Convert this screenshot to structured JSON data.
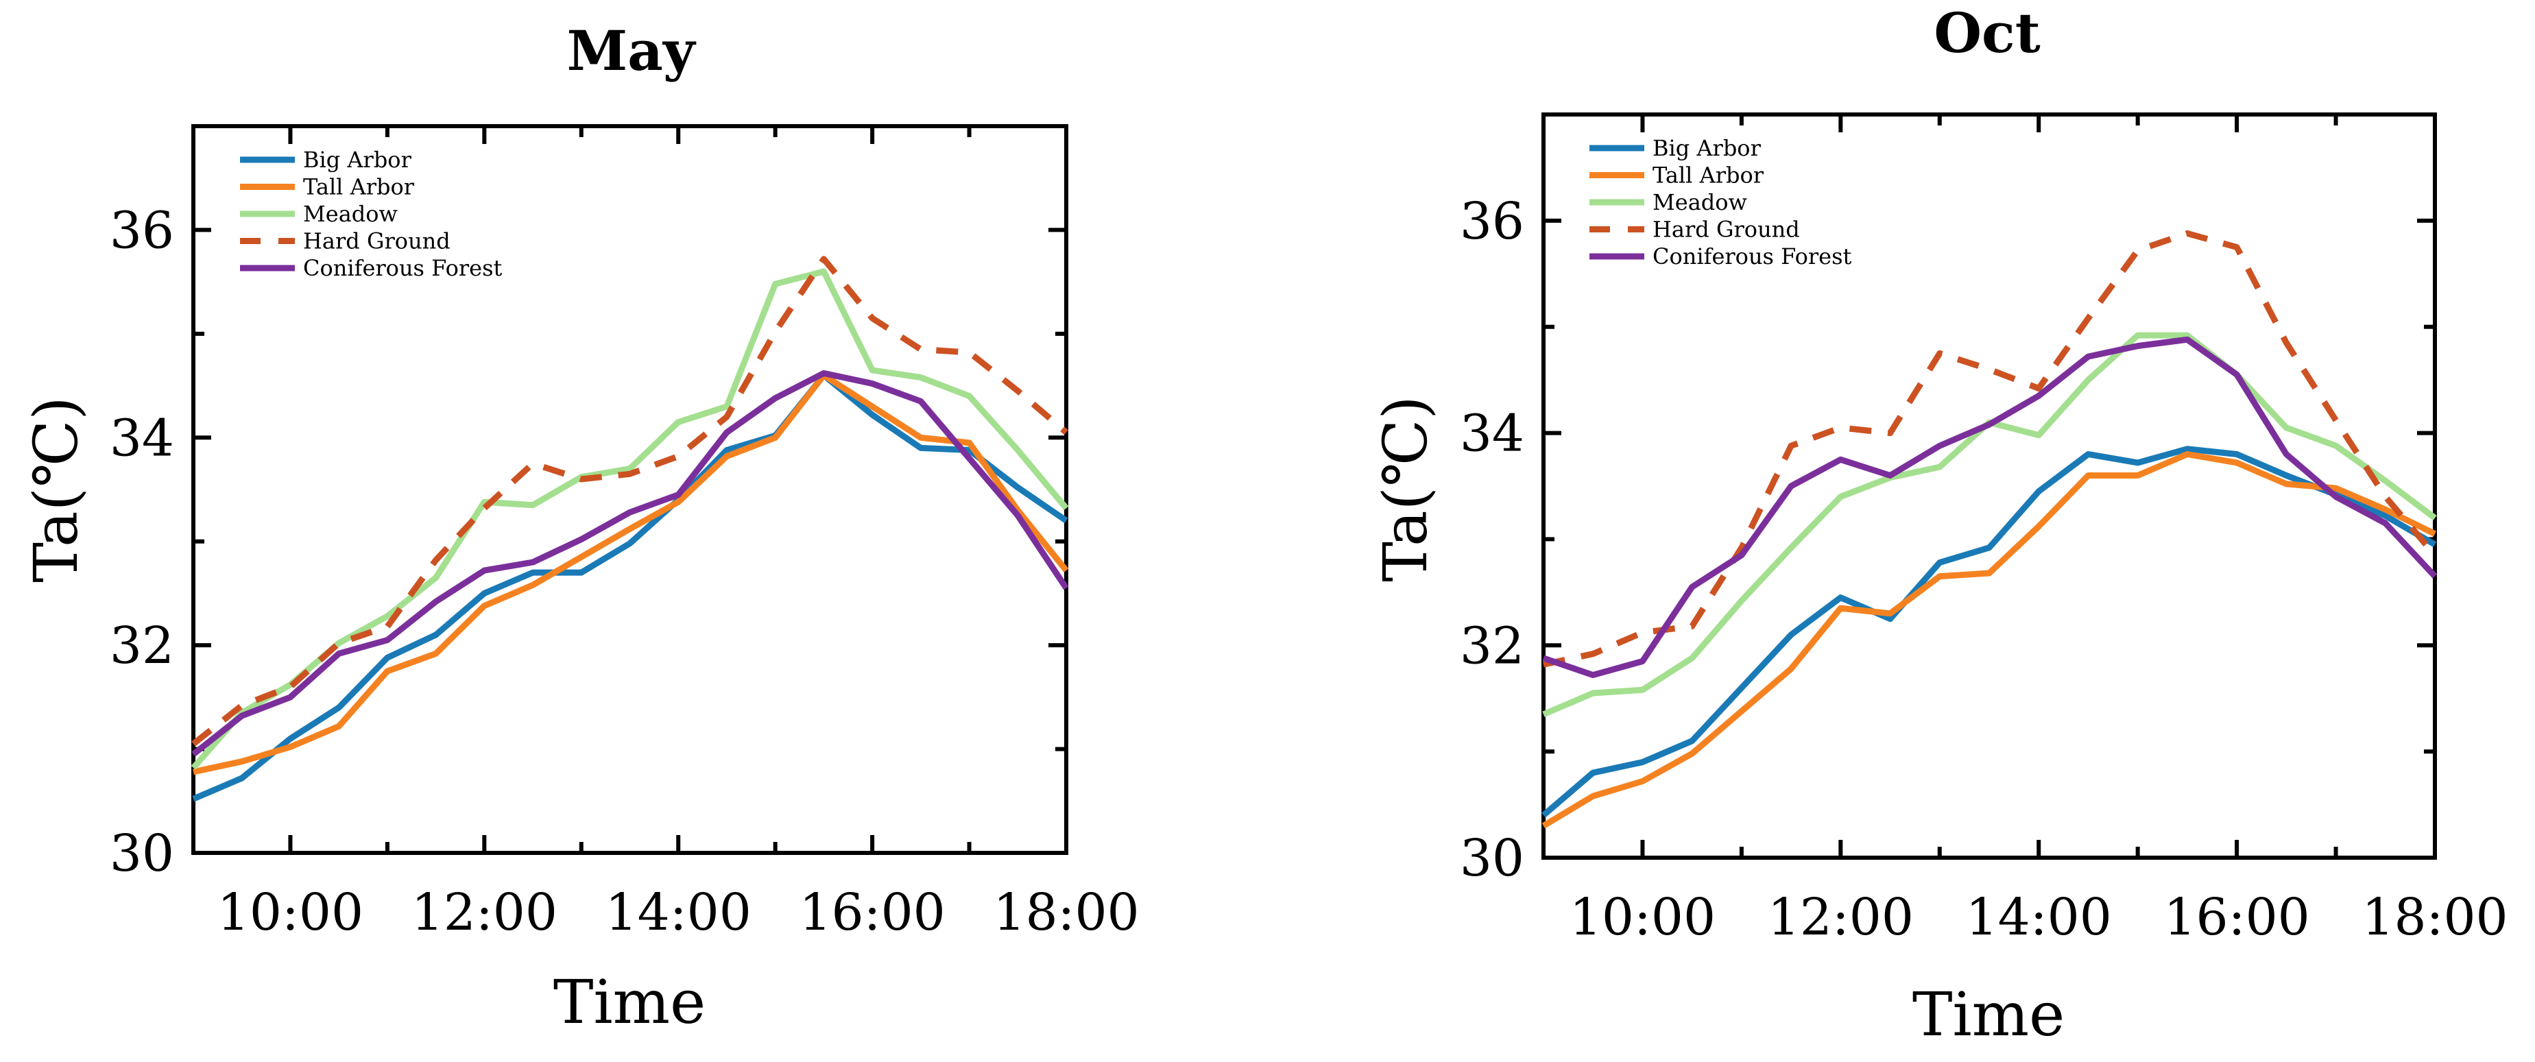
{
  "chart_data": [
    {
      "type": "line",
      "title": "May",
      "xlabel": "Time",
      "ylabel": "Ta(℃)",
      "x": [
        9,
        9.5,
        10,
        10.5,
        11,
        11.5,
        12,
        12.5,
        13,
        13.5,
        14,
        14.5,
        15,
        15.5,
        16,
        16.5,
        17,
        17.5,
        18
      ],
      "xlim": [
        9,
        18
      ],
      "ylim": [
        30,
        37
      ],
      "xticks": [
        10,
        12,
        14,
        16,
        18
      ],
      "xtick_labels": [
        "10:00",
        "12:00",
        "14:00",
        "16:00",
        "18:00"
      ],
      "yticks": [
        30,
        32,
        34,
        36
      ],
      "ytick_labels": [
        "30",
        "32",
        "34",
        "36"
      ],
      "legend_position": "top-left",
      "series": [
        {
          "name": "Big Arbor",
          "color": "#1a7ab6",
          "dash": "solid",
          "values": [
            30.52,
            30.72,
            31.1,
            31.4,
            31.88,
            32.1,
            32.5,
            32.7,
            32.7,
            32.98,
            33.4,
            33.88,
            34.02,
            34.6,
            34.22,
            33.9,
            33.88,
            33.52,
            33.2
          ]
        },
        {
          "name": "Tall Arbor",
          "color": "#f58220",
          "dash": "solid",
          "values": [
            30.78,
            30.88,
            31.02,
            31.22,
            31.75,
            31.92,
            32.38,
            32.58,
            32.85,
            33.12,
            33.38,
            33.82,
            34.0,
            34.6,
            34.3,
            34.0,
            33.95,
            33.3,
            32.72
          ]
        },
        {
          "name": "Meadow",
          "color": "#a3df8f",
          "dash": "solid",
          "values": [
            30.82,
            31.35,
            31.62,
            32.02,
            32.28,
            32.65,
            33.38,
            33.35,
            33.62,
            33.7,
            34.15,
            34.3,
            35.48,
            35.6,
            34.65,
            34.58,
            34.4,
            33.88,
            33.32
          ]
        },
        {
          "name": "Hard Ground",
          "color": "#cc5222",
          "dash": "dashed",
          "values": [
            31.05,
            31.42,
            31.6,
            32.02,
            32.18,
            32.82,
            33.32,
            33.75,
            33.6,
            33.65,
            33.82,
            34.2,
            35.02,
            35.72,
            35.15,
            34.85,
            34.82,
            34.45,
            34.05
          ]
        },
        {
          "name": "Coniferous Forest",
          "color": "#7b2f9b",
          "dash": "solid",
          "values": [
            30.95,
            31.32,
            31.5,
            31.92,
            32.05,
            32.42,
            32.72,
            32.8,
            33.02,
            33.28,
            33.45,
            34.05,
            34.38,
            34.62,
            34.52,
            34.35,
            33.8,
            33.25,
            32.55
          ]
        }
      ]
    },
    {
      "type": "line",
      "title": "Oct",
      "xlabel": "Time",
      "ylabel": "Ta(℃)",
      "x": [
        9,
        9.5,
        10,
        10.5,
        11,
        11.5,
        12,
        12.5,
        13,
        13.5,
        14,
        14.5,
        15,
        15.5,
        16,
        16.5,
        17,
        17.5,
        18
      ],
      "xlim": [
        9,
        18
      ],
      "ylim": [
        30,
        37
      ],
      "xticks": [
        10,
        12,
        14,
        16,
        18
      ],
      "xtick_labels": [
        "10:00",
        "12:00",
        "14:00",
        "16:00",
        "18:00"
      ],
      "yticks": [
        30,
        32,
        34,
        36
      ],
      "ytick_labels": [
        "30",
        "32",
        "34",
        "36"
      ],
      "legend_position": "top-left",
      "series": [
        {
          "name": "Big Arbor",
          "color": "#1a7ab6",
          "dash": "solid",
          "values": [
            30.4,
            30.8,
            30.9,
            31.1,
            31.6,
            32.1,
            32.45,
            32.25,
            32.78,
            32.92,
            33.45,
            33.8,
            33.72,
            33.85,
            33.8,
            33.6,
            33.42,
            33.22,
            32.95
          ]
        },
        {
          "name": "Tall Arbor",
          "color": "#f58220",
          "dash": "solid",
          "values": [
            30.3,
            30.58,
            30.72,
            30.98,
            31.38,
            31.78,
            32.35,
            32.3,
            32.65,
            32.68,
            33.12,
            33.6,
            33.6,
            33.8,
            33.72,
            33.52,
            33.48,
            33.28,
            33.05
          ]
        },
        {
          "name": "Meadow",
          "color": "#a3df8f",
          "dash": "solid",
          "values": [
            31.35,
            31.55,
            31.58,
            31.88,
            32.42,
            32.92,
            33.4,
            33.58,
            33.68,
            34.1,
            33.98,
            34.5,
            34.92,
            34.92,
            34.55,
            34.05,
            33.88,
            33.55,
            33.2
          ]
        },
        {
          "name": "Hard Ground",
          "color": "#cc5222",
          "dash": "dashed",
          "values": [
            31.82,
            31.92,
            32.12,
            32.18,
            32.92,
            33.88,
            34.05,
            34.0,
            34.75,
            34.6,
            34.42,
            35.08,
            35.72,
            35.88,
            35.75,
            34.85,
            34.12,
            33.4,
            32.85
          ]
        },
        {
          "name": "Coniferous Forest",
          "color": "#7b2f9b",
          "dash": "solid",
          "values": [
            31.88,
            31.72,
            31.85,
            32.55,
            32.85,
            33.5,
            33.75,
            33.6,
            33.88,
            34.08,
            34.35,
            34.72,
            34.82,
            34.88,
            34.55,
            33.8,
            33.4,
            33.15,
            32.65
          ]
        }
      ]
    }
  ]
}
